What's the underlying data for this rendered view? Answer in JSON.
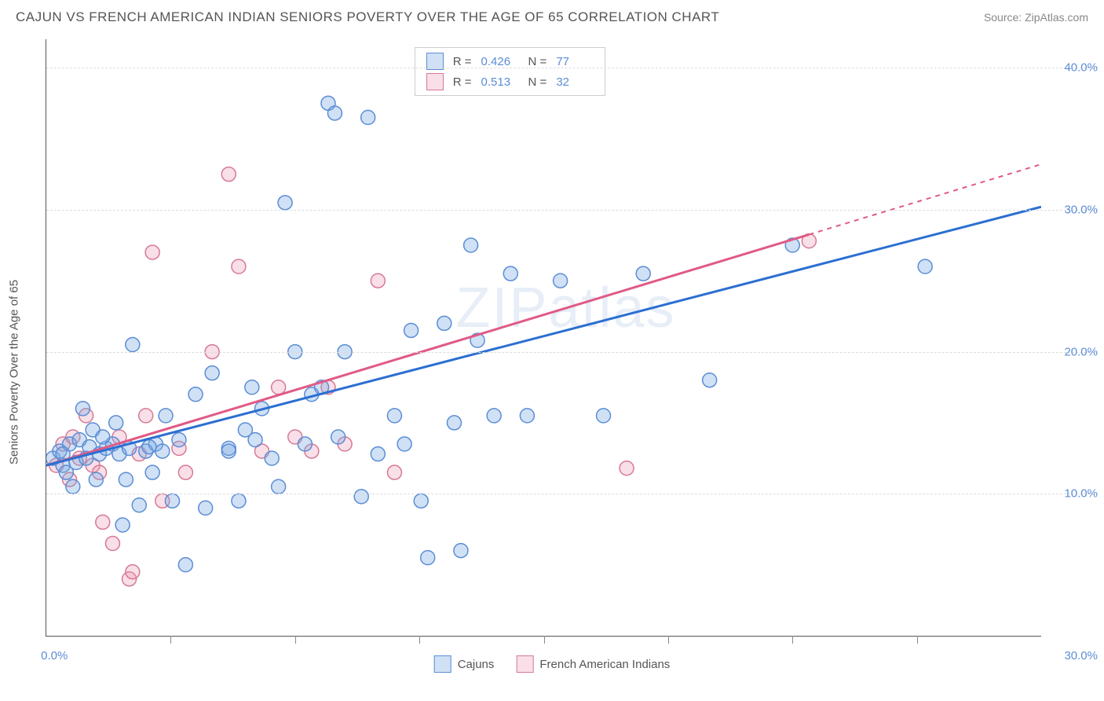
{
  "header": {
    "title": "CAJUN VS FRENCH AMERICAN INDIAN SENIORS POVERTY OVER THE AGE OF 65 CORRELATION CHART",
    "source": "Source: ZipAtlas.com"
  },
  "axes": {
    "y_label": "Seniors Poverty Over the Age of 65",
    "x_min": 0,
    "x_max": 30,
    "y_min": 0,
    "y_max": 42,
    "y_ticks": [
      10,
      20,
      30,
      40
    ],
    "y_tick_labels": [
      "10.0%",
      "20.0%",
      "30.0%",
      "40.0%"
    ],
    "x_ticks": [
      0,
      3.75,
      7.5,
      11.25,
      15,
      18.75,
      22.5,
      26.25,
      30
    ],
    "x_label_first": "0.0%",
    "x_label_last": "30.0%"
  },
  "watermark": "ZIPatlas",
  "colors": {
    "series_a_fill": "rgba(120, 170, 225, 0.35)",
    "series_a_stroke": "#5b8dd6",
    "series_b_fill": "rgba(235, 150, 175, 0.30)",
    "series_b_stroke": "#d67a94",
    "trend_a": "#2b6fd1",
    "trend_b": "#e05a85",
    "tick_text": "#5b8dd6",
    "grid": "#dddddd",
    "axis": "#555555"
  },
  "stats_legend": {
    "rows": [
      {
        "series": "a",
        "r_label": "R =",
        "r_value": "0.426",
        "n_label": "N =",
        "n_value": "77"
      },
      {
        "series": "b",
        "r_label": "R =",
        "r_value": "0.513",
        "n_label": "N =",
        "n_value": "32"
      }
    ]
  },
  "bottom_legend": {
    "items": [
      {
        "series": "a",
        "label": "Cajuns"
      },
      {
        "series": "b",
        "label": "French American Indians"
      }
    ]
  },
  "trend_lines": {
    "a": {
      "x1": 0,
      "y1": 12.0,
      "x2": 30,
      "y2": 30.2,
      "dash_from_x": null
    },
    "b": {
      "x1": 0,
      "y1": 12.0,
      "x2": 30,
      "y2": 33.2,
      "dash_from_x": 23
    }
  },
  "scatter": {
    "marker_radius": 9,
    "a": [
      [
        0.2,
        12.5
      ],
      [
        0.4,
        13.0
      ],
      [
        0.5,
        12.0
      ],
      [
        0.6,
        11.5
      ],
      [
        0.7,
        13.5
      ],
      [
        0.8,
        10.5
      ],
      [
        0.9,
        12.2
      ],
      [
        1.0,
        13.8
      ],
      [
        1.1,
        16.0
      ],
      [
        1.2,
        12.5
      ],
      [
        1.3,
        13.3
      ],
      [
        1.4,
        14.5
      ],
      [
        1.5,
        11.0
      ],
      [
        1.6,
        12.8
      ],
      [
        1.8,
        13.2
      ],
      [
        2.0,
        13.5
      ],
      [
        2.1,
        15.0
      ],
      [
        2.2,
        12.8
      ],
      [
        2.3,
        7.8
      ],
      [
        2.5,
        13.2
      ],
      [
        2.6,
        20.5
      ],
      [
        2.8,
        9.2
      ],
      [
        3.0,
        13.0
      ],
      [
        3.2,
        11.5
      ],
      [
        3.3,
        13.5
      ],
      [
        3.5,
        13.0
      ],
      [
        3.6,
        15.5
      ],
      [
        3.8,
        9.5
      ],
      [
        4.2,
        5.0
      ],
      [
        4.5,
        17.0
      ],
      [
        5.0,
        18.5
      ],
      [
        5.5,
        13.2
      ],
      [
        5.8,
        9.5
      ],
      [
        6.0,
        14.5
      ],
      [
        6.2,
        17.5
      ],
      [
        6.5,
        16.0
      ],
      [
        6.8,
        12.5
      ],
      [
        7.0,
        10.5
      ],
      [
        7.2,
        30.5
      ],
      [
        7.5,
        20.0
      ],
      [
        7.8,
        13.5
      ],
      [
        8.0,
        17.0
      ],
      [
        8.3,
        17.5
      ],
      [
        8.5,
        37.5
      ],
      [
        8.7,
        36.8
      ],
      [
        9.0,
        20.0
      ],
      [
        9.5,
        9.8
      ],
      [
        9.7,
        36.5
      ],
      [
        10.0,
        12.8
      ],
      [
        10.5,
        15.5
      ],
      [
        10.8,
        13.5
      ],
      [
        11.0,
        21.5
      ],
      [
        11.3,
        9.5
      ],
      [
        11.5,
        5.5
      ],
      [
        12.0,
        22.0
      ],
      [
        12.3,
        15.0
      ],
      [
        12.5,
        6.0
      ],
      [
        12.8,
        27.5
      ],
      [
        13.0,
        20.8
      ],
      [
        13.5,
        15.5
      ],
      [
        14.0,
        25.5
      ],
      [
        14.5,
        15.5
      ],
      [
        15.5,
        25.0
      ],
      [
        16.8,
        15.5
      ],
      [
        18.0,
        25.5
      ],
      [
        20.0,
        18.0
      ],
      [
        22.5,
        27.5
      ],
      [
        26.5,
        26.0
      ],
      [
        0.5,
        12.8
      ],
      [
        1.7,
        14.0
      ],
      [
        2.4,
        11.0
      ],
      [
        3.1,
        13.3
      ],
      [
        4.0,
        13.8
      ],
      [
        4.8,
        9.0
      ],
      [
        5.5,
        13.0
      ],
      [
        6.3,
        13.8
      ],
      [
        8.8,
        14.0
      ]
    ],
    "b": [
      [
        0.3,
        12.0
      ],
      [
        0.5,
        13.5
      ],
      [
        0.7,
        11.0
      ],
      [
        0.8,
        14.0
      ],
      [
        1.0,
        12.5
      ],
      [
        1.2,
        15.5
      ],
      [
        1.4,
        12.0
      ],
      [
        1.6,
        11.5
      ],
      [
        1.7,
        8.0
      ],
      [
        2.0,
        6.5
      ],
      [
        2.2,
        14.0
      ],
      [
        2.5,
        4.0
      ],
      [
        2.6,
        4.5
      ],
      [
        2.8,
        12.8
      ],
      [
        3.0,
        15.5
      ],
      [
        3.2,
        27.0
      ],
      [
        3.5,
        9.5
      ],
      [
        4.0,
        13.2
      ],
      [
        4.2,
        11.5
      ],
      [
        5.0,
        20.0
      ],
      [
        5.5,
        32.5
      ],
      [
        5.8,
        26.0
      ],
      [
        6.5,
        13.0
      ],
      [
        7.0,
        17.5
      ],
      [
        7.5,
        14.0
      ],
      [
        8.0,
        13.0
      ],
      [
        8.5,
        17.5
      ],
      [
        9.0,
        13.5
      ],
      [
        10.0,
        25.0
      ],
      [
        10.5,
        11.5
      ],
      [
        17.5,
        11.8
      ],
      [
        23.0,
        27.8
      ]
    ]
  }
}
